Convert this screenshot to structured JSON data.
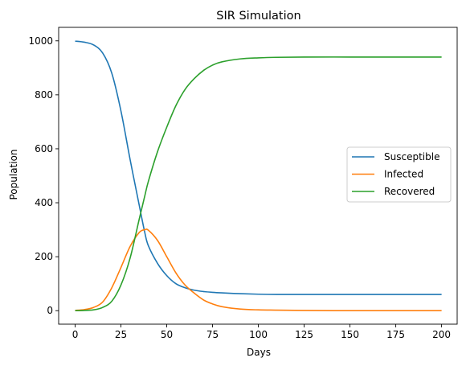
{
  "chart_data": {
    "type": "line",
    "title": "SIR Simulation",
    "xlabel": "Days",
    "ylabel": "Population",
    "xlim": [
      -9,
      208.5
    ],
    "ylim": [
      -50,
      1050
    ],
    "xticks": [
      0,
      25,
      50,
      75,
      100,
      125,
      150,
      175,
      200
    ],
    "yticks": [
      0,
      200,
      400,
      600,
      800,
      1000
    ],
    "grid": false,
    "legend_position": "center-right",
    "x": [
      0,
      5,
      10,
      15,
      20,
      25,
      30,
      35,
      38,
      40,
      45,
      50,
      55,
      60,
      65,
      70,
      75,
      80,
      90,
      100,
      110,
      125,
      150,
      175,
      200
    ],
    "series": [
      {
        "name": "Susceptible",
        "color": "#1f77b4",
        "values": [
          999,
          995,
          985,
          955,
          880,
          740,
          560,
          390,
          290,
          240,
          175,
          130,
          100,
          85,
          76,
          71,
          68,
          66,
          63,
          61,
          60,
          60,
          60,
          60,
          60
        ]
      },
      {
        "name": "Infected",
        "color": "#ff7f0e",
        "values": [
          1,
          4,
          12,
          32,
          85,
          160,
          238,
          290,
          300,
          298,
          260,
          200,
          140,
          95,
          65,
          40,
          25,
          15,
          6,
          3,
          2,
          1,
          0,
          0,
          0
        ]
      },
      {
        "name": "Recovered",
        "color": "#2ca02c",
        "values": [
          0,
          1,
          3,
          12,
          35,
          95,
          195,
          340,
          425,
          480,
          590,
          680,
          760,
          820,
          860,
          890,
          910,
          922,
          933,
          937,
          939,
          940,
          940,
          940,
          940
        ]
      }
    ]
  }
}
